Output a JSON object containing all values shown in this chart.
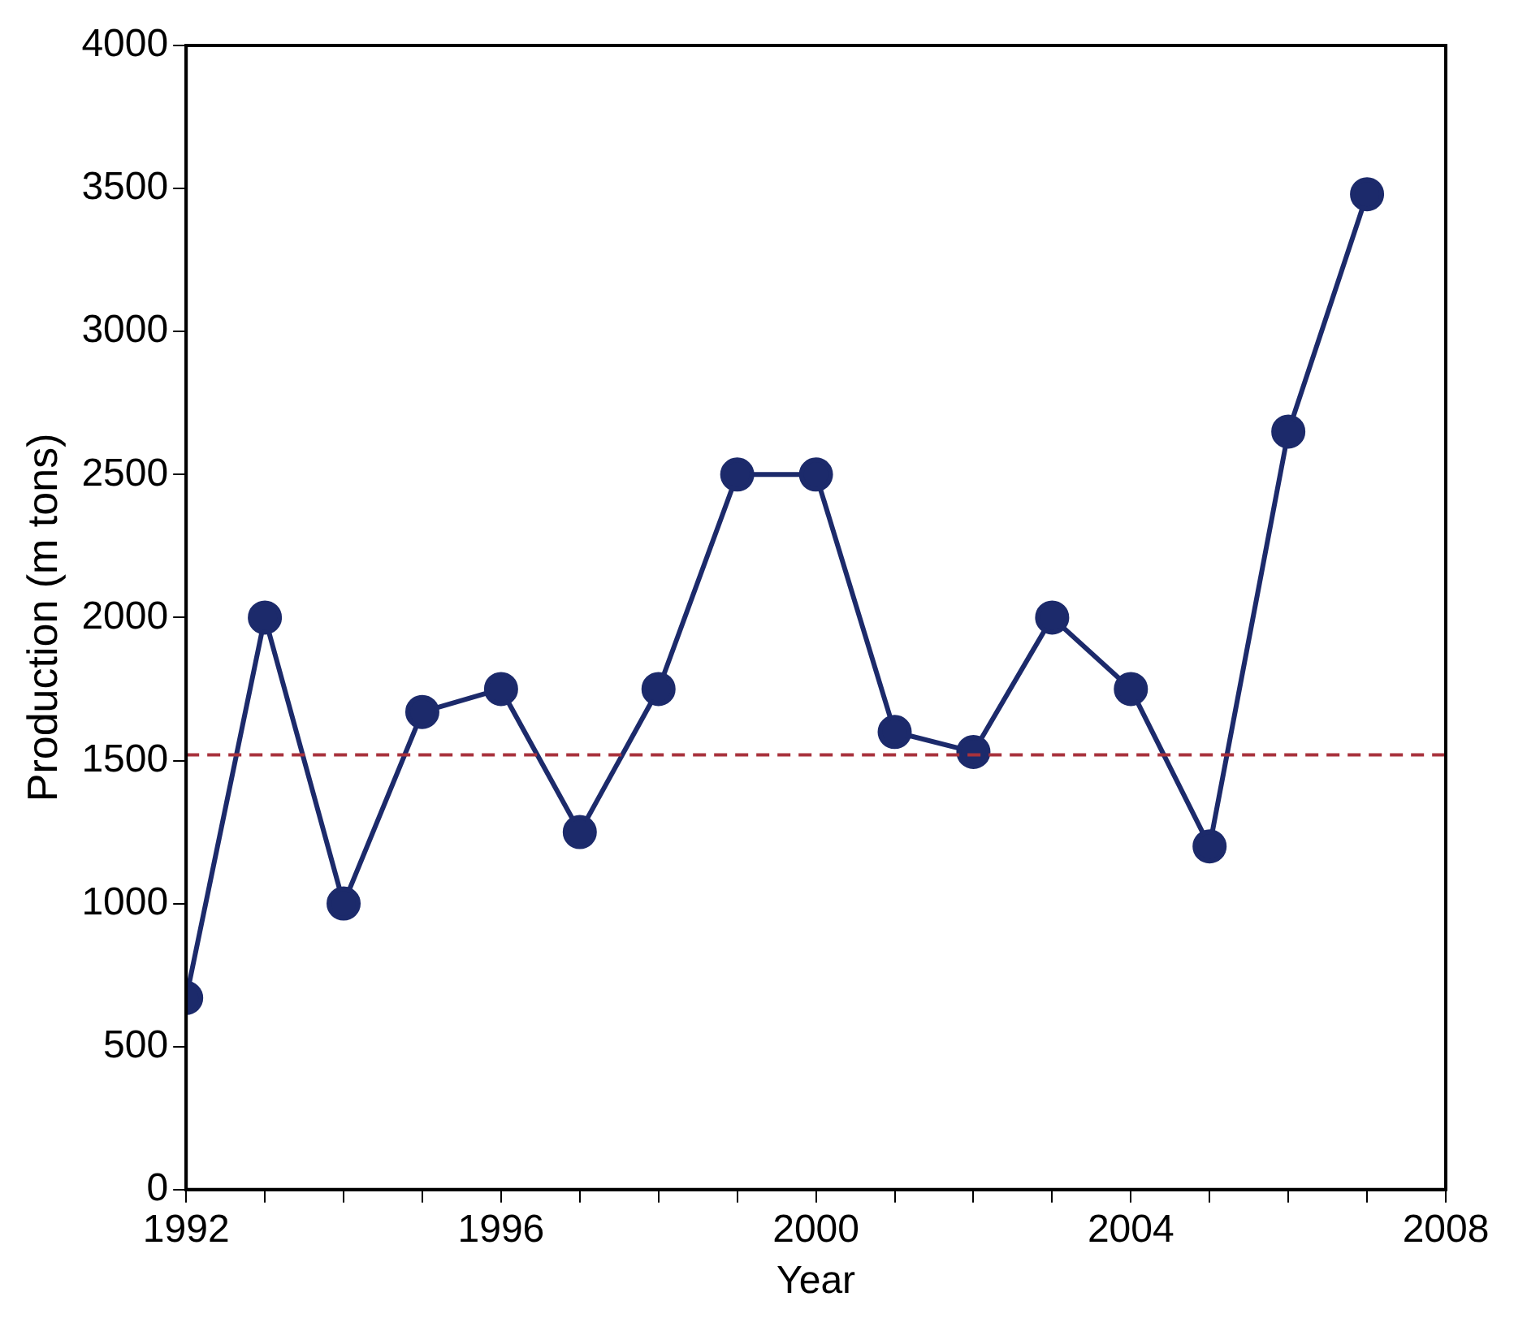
{
  "chart_data": {
    "type": "line",
    "xlabel": "Year",
    "ylabel": "Production (m tons)",
    "x": [
      1992,
      1993,
      1994,
      1995,
      1996,
      1997,
      1998,
      1999,
      2000,
      2001,
      2002,
      2003,
      2004,
      2005,
      2006,
      2007
    ],
    "series": [
      {
        "color": "#1c2a6b",
        "values": [
          670,
          2000,
          1000,
          1670,
          1750,
          1250,
          1750,
          2500,
          2500,
          1600,
          1530,
          2000,
          1750,
          1200,
          2650,
          3480
        ]
      }
    ],
    "xlim": [
      1992,
      2008
    ],
    "xticks": [
      1992,
      {
        "value": 1993,
        "label": null
      },
      {
        "value": 1994,
        "label": null
      },
      {
        "value": 1995,
        "label": null
      },
      1996,
      {
        "value": 1997,
        "label": null
      },
      {
        "value": 1998,
        "label": null
      },
      {
        "value": 1999,
        "label": null
      },
      2000,
      {
        "value": 2001,
        "label": null
      },
      {
        "value": 2002,
        "label": null
      },
      {
        "value": 2003,
        "label": null
      },
      2004,
      {
        "value": 2005,
        "label": null
      },
      {
        "value": 2006,
        "label": null
      },
      {
        "value": 2007,
        "label": null
      },
      2008
    ],
    "ylim": [
      0,
      4000
    ],
    "yticks": [
      0,
      500,
      1000,
      1500,
      2000,
      2500,
      3000,
      3500,
      4000
    ],
    "ref_lines": [
      {
        "axis": "y",
        "value": 1520,
        "color": "#a8323c",
        "line_style": "dashed"
      }
    ],
    "grid": false,
    "legend": false,
    "marker": "circle",
    "line_style": "solid"
  }
}
